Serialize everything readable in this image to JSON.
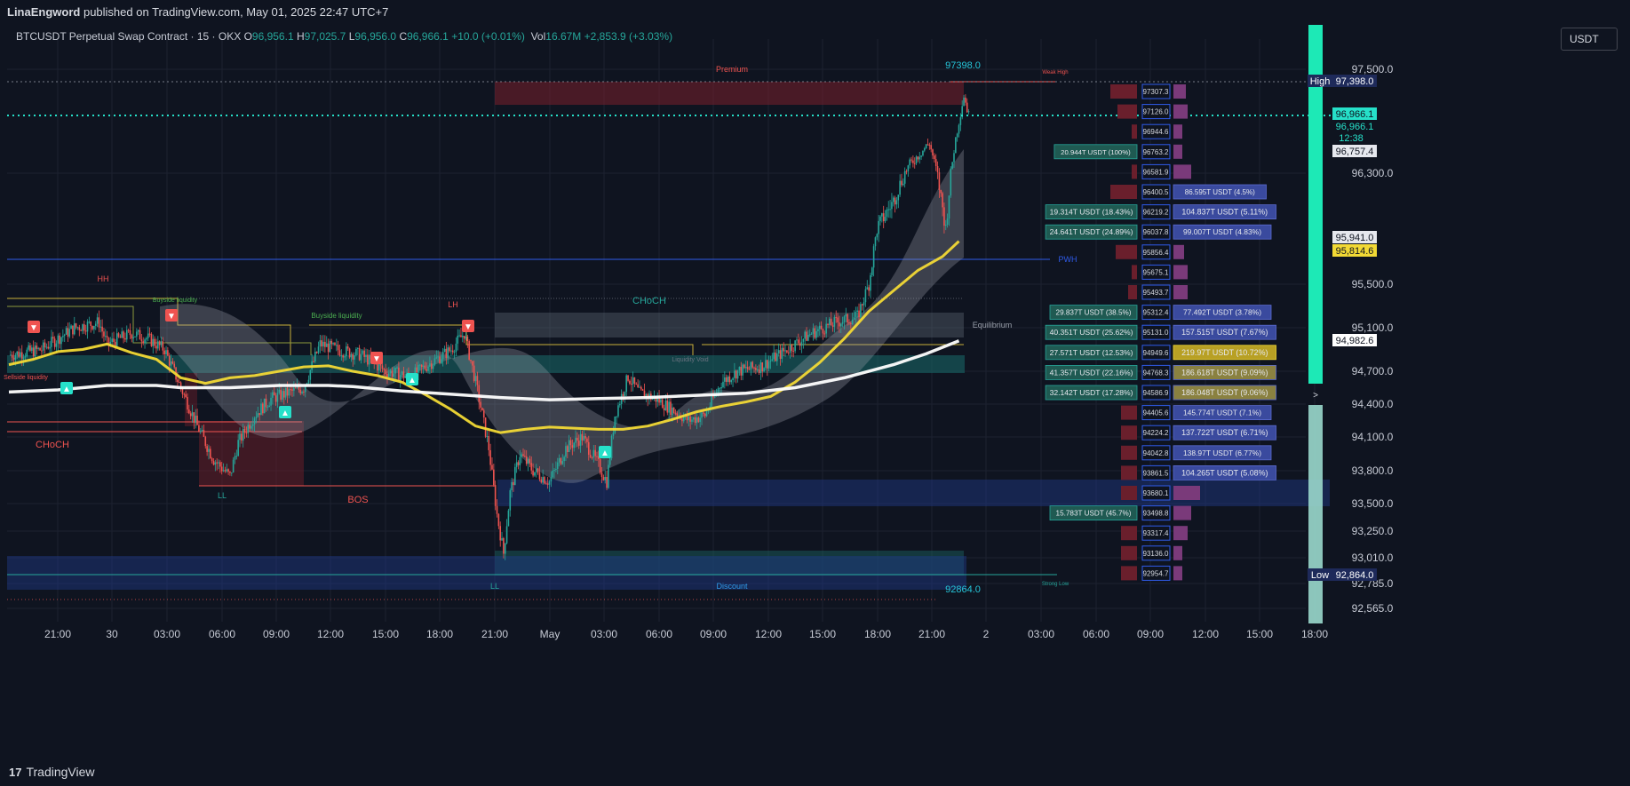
{
  "header": {
    "author": "LinaEngword",
    "published_text": "published on TradingView.com, May 01, 2025 22:47 UTC+7"
  },
  "legend": {
    "symbol": "BTCUSDT Perpetual Swap Contract · 15 · OKX",
    "o_label": "O",
    "o_value": "96,956.1",
    "h_label": "H",
    "h_value": "97,025.7",
    "l_label": "L",
    "l_value": "96,956.0",
    "c_label": "C",
    "c_value": "96,966.1",
    "change": "+10.0 (+0.01%)",
    "vol_label": "Vol",
    "vol_value": "16.67M",
    "vol_change": "+2,853.9 (+3.03%)"
  },
  "unit_label": "USDT",
  "footer": {
    "brand": "TradingView",
    "logo_mark": "17"
  },
  "colors": {
    "background": "#0f1420",
    "up": "#26a69a",
    "down": "#ef5350",
    "ema_yellow": "#f2d935",
    "ema_white": "#ffffff",
    "current_price": "#26e0c9",
    "ob_blue": "#1e3a8a"
  },
  "chart_data": {
    "type": "candlestick",
    "title": "",
    "x_ticks": [
      "21:00",
      "30",
      "03:00",
      "06:00",
      "09:00",
      "12:00",
      "15:00",
      "18:00",
      "21:00",
      "May",
      "03:00",
      "06:00",
      "09:00",
      "12:00",
      "15:00",
      "18:00",
      "21:00",
      "2",
      "03:00",
      "06:00",
      "09:00",
      "12:00",
      "15:00",
      "18:00"
    ],
    "y_ticks": [
      97500.0,
      96300.0,
      95500.0,
      95100.0,
      94700.0,
      94400.0,
      94100.0,
      93800.0,
      93500.0,
      93250.0,
      93010.0,
      92785.0,
      92565.0
    ],
    "y_range": [
      92400,
      97700
    ],
    "current_price": 96966.1,
    "countdown": "12:38",
    "price_badges": [
      {
        "label": "High",
        "value": "97,398.0"
      },
      {
        "label": "",
        "value": "96,966.1"
      },
      {
        "label": "",
        "value": "96,757.4"
      },
      {
        "label": "",
        "value": "95,941.0"
      },
      {
        "label": "",
        "value": "95,814.6"
      },
      {
        "label": "",
        "value": "94,982.6"
      },
      {
        "label": "Low",
        "value": "92,864.0"
      }
    ],
    "high_label": "97398.0",
    "low_label": "92864.0",
    "annotations": [
      "Premium",
      "Discount",
      "Equilibrium",
      "PWH",
      "Weak High",
      "Strong Low",
      "CHoCH",
      "CHoCH",
      "BOS",
      "HH",
      "LH",
      "LL",
      "LL",
      "Buyside liquidity",
      "Buyside liquidity",
      "Sellside liquidity",
      "Liquidity Void"
    ],
    "series": [
      {
        "name": "",
        "type": "ema",
        "color": "#f2d935",
        "points": [
          [
            0,
            94760
          ],
          [
            15,
            94810
          ],
          [
            30,
            94880
          ],
          [
            45,
            94900
          ],
          [
            60,
            94950
          ],
          [
            75,
            94870
          ],
          [
            90,
            94810
          ],
          [
            105,
            94640
          ],
          [
            120,
            94590
          ],
          [
            135,
            94640
          ],
          [
            150,
            94660
          ],
          [
            165,
            94700
          ],
          [
            180,
            94740
          ],
          [
            195,
            94750
          ],
          [
            210,
            94700
          ],
          [
            225,
            94660
          ],
          [
            240,
            94600
          ],
          [
            255,
            94480
          ],
          [
            270,
            94350
          ],
          [
            285,
            94200
          ],
          [
            300,
            94140
          ],
          [
            315,
            94170
          ],
          [
            330,
            94190
          ],
          [
            345,
            94180
          ],
          [
            360,
            94170
          ],
          [
            375,
            94170
          ],
          [
            390,
            94200
          ],
          [
            405,
            94260
          ],
          [
            420,
            94330
          ],
          [
            435,
            94380
          ],
          [
            450,
            94420
          ],
          [
            465,
            94470
          ],
          [
            480,
            94600
          ],
          [
            495,
            94780
          ],
          [
            510,
            95000
          ],
          [
            525,
            95250
          ],
          [
            540,
            95440
          ],
          [
            555,
            95600
          ],
          [
            570,
            95700
          ],
          [
            580,
            95810
          ]
        ]
      },
      {
        "name": "",
        "type": "ema",
        "color": "#ffffff",
        "points": [
          [
            0,
            94510
          ],
          [
            30,
            94530
          ],
          [
            60,
            94570
          ],
          [
            90,
            94570
          ],
          [
            105,
            94550
          ],
          [
            135,
            94550
          ],
          [
            165,
            94570
          ],
          [
            195,
            94570
          ],
          [
            210,
            94560
          ],
          [
            240,
            94520
          ],
          [
            270,
            94490
          ],
          [
            300,
            94460
          ],
          [
            330,
            94440
          ],
          [
            360,
            94450
          ],
          [
            390,
            94460
          ],
          [
            420,
            94480
          ],
          [
            450,
            94500
          ],
          [
            480,
            94550
          ],
          [
            510,
            94640
          ],
          [
            540,
            94760
          ],
          [
            560,
            94860
          ],
          [
            580,
            94980
          ]
        ]
      }
    ],
    "volume_profile": [
      {
        "price": "97307.3",
        "buy": "",
        "sell": ""
      },
      {
        "price": "97126.0",
        "buy": "",
        "sell": ""
      },
      {
        "price": "96944.6",
        "buy": "",
        "sell": ""
      },
      {
        "price": "96763.2",
        "buy": "20.944T USDT (100%)",
        "sell": ""
      },
      {
        "price": "96581.9",
        "buy": "",
        "sell": ""
      },
      {
        "price": "96400.5",
        "buy": "",
        "sell": "",
        "sell_note": "86.595T USDT (4.5%)"
      },
      {
        "price": "96219.2",
        "buy": "19.314T USDT (18.43%)",
        "sell": "104.837T USDT (5.11%)"
      },
      {
        "price": "96037.8",
        "buy": "24.641T USDT (24.89%)",
        "sell": "99.007T USDT (4.83%)"
      },
      {
        "price": "95856.4",
        "buy": "",
        "sell": ""
      },
      {
        "price": "95675.1",
        "buy": "",
        "sell": ""
      },
      {
        "price": "95493.7",
        "buy": "",
        "sell": ""
      },
      {
        "price": "95312.4",
        "buy": "29.837T USDT (38.5%)",
        "sell": "77.492T USDT (3.78%)"
      },
      {
        "price": "95131.0",
        "buy": "40.351T USDT (25.62%)",
        "sell": "157.515T USDT (7.67%)"
      },
      {
        "price": "94949.6",
        "buy": "27.571T USDT (12.53%)",
        "sell": "219.97T USDT (10.72%)"
      },
      {
        "price": "94768.3",
        "buy": "41.357T USDT (22.16%)",
        "sell": "186.618T USDT (9.09%)"
      },
      {
        "price": "94586.9",
        "buy": "32.142T USDT (17.28%)",
        "sell": "186.048T USDT (9.06%)"
      },
      {
        "price": "94405.6",
        "buy": "",
        "sell": "145.774T USDT (7.1%)"
      },
      {
        "price": "94224.2",
        "buy": "",
        "sell": "137.722T USDT (6.71%)"
      },
      {
        "price": "94042.8",
        "buy": "",
        "sell": "138.97T USDT (6.77%)"
      },
      {
        "price": "93861.5",
        "buy": "",
        "sell": "104.265T USDT (5.08%)"
      },
      {
        "price": "93680.1",
        "buy": "",
        "sell": ""
      },
      {
        "price": "93498.8",
        "buy": "15.783T USDT (45.7%)",
        "sell": ""
      },
      {
        "price": "93317.4",
        "buy": "",
        "sell": ""
      },
      {
        "price": "93136.0",
        "buy": "",
        "sell": ""
      },
      {
        "price": "92954.7",
        "buy": "",
        "sell": ""
      }
    ]
  }
}
